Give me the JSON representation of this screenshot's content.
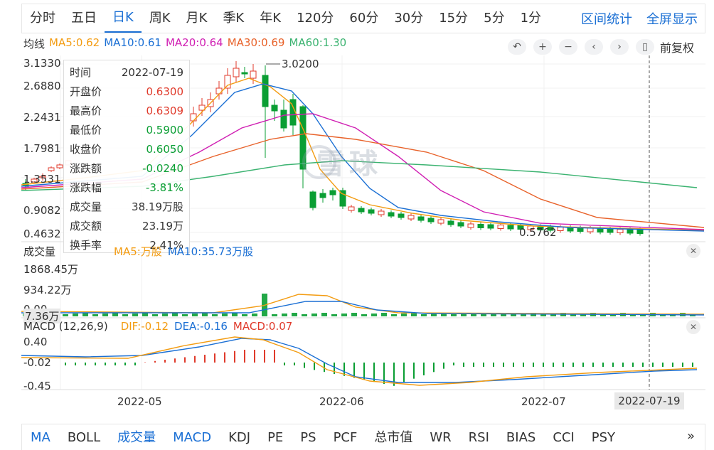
{
  "periods": [
    "分时",
    "五日",
    "日K",
    "周K",
    "月K",
    "季K",
    "年K",
    "120分",
    "60分",
    "30分",
    "15分",
    "5分",
    "1分"
  ],
  "active_period": "日K",
  "links": {
    "range_stats": "区间统计",
    "fullscreen": "全屏显示"
  },
  "ma_legend": {
    "title": "均线",
    "items": [
      {
        "label": "MA5:0.62",
        "color": "#f39c12"
      },
      {
        "label": "MA10:0.61",
        "color": "#1a6fd4"
      },
      {
        "label": "MA20:0.64",
        "color": "#d01fb3"
      },
      {
        "label": "MA30:0.69",
        "color": "#e8622a"
      },
      {
        "label": "MA60:1.30",
        "color": "#3cb371"
      }
    ]
  },
  "toolbar": {
    "adjust_label": "前复权"
  },
  "price_axis": [
    "3.1330",
    "2.6880",
    "2.2431",
    "1.7981",
    "1.3531",
    "0.9082",
    "0.4632"
  ],
  "annotations": {
    "high": "3.0200",
    "low": "0.5762"
  },
  "tooltip": {
    "rows": [
      {
        "k": "时间",
        "v": "2022-07-19",
        "c": "#333"
      },
      {
        "k": "开盘价",
        "v": "0.6300",
        "c": "#e03a2b"
      },
      {
        "k": "最高价",
        "v": "0.6309",
        "c": "#e03a2b"
      },
      {
        "k": "最低价",
        "v": "0.5900",
        "c": "#0a9e33"
      },
      {
        "k": "收盘价",
        "v": "0.6050",
        "c": "#0a9e33"
      },
      {
        "k": "涨跌额",
        "v": "-0.0240",
        "c": "#0a9e33"
      },
      {
        "k": "涨跌幅",
        "v": "-3.81%",
        "c": "#0a9e33"
      },
      {
        "k": "成交量",
        "v": "38.19万股",
        "c": "#333"
      },
      {
        "k": "成交额",
        "v": "23.19万",
        "c": "#333"
      },
      {
        "k": "换手率",
        "v": "2.41%",
        "c": "#333"
      }
    ]
  },
  "volume_panel": {
    "title": "成交量",
    "ma5_label": "MA5:",
    "ma5_unit": "万股",
    "ma10_label": "MA10:35.73万股",
    "axis": [
      "1868.45万",
      "934.22万",
      "0.00",
      "7.36万"
    ]
  },
  "macd_panel": {
    "title": "MACD (12,26,9)",
    "dif": "DIF:-0.12",
    "dea": "DEA:-0.16",
    "macd": "MACD:0.07",
    "axis": [
      "0.40",
      "-0.02",
      "-0.45"
    ]
  },
  "x_axis": [
    "2022-05",
    "2022-06",
    "2022-07"
  ],
  "cursor_date": "2022-07-19",
  "indicators": [
    "MA",
    "BOLL",
    "成交量",
    "MACD",
    "KDJ",
    "PE",
    "PS",
    "PCF",
    "总市值",
    "WR",
    "RSI",
    "BIAS",
    "CCI",
    "PSY"
  ],
  "active_indicators": [
    "成交量",
    "MACD"
  ],
  "watermark": "雪球",
  "colors": {
    "up": "#e03a2b",
    "down": "#0a9e33",
    "accent": "#1a6fd4"
  }
}
